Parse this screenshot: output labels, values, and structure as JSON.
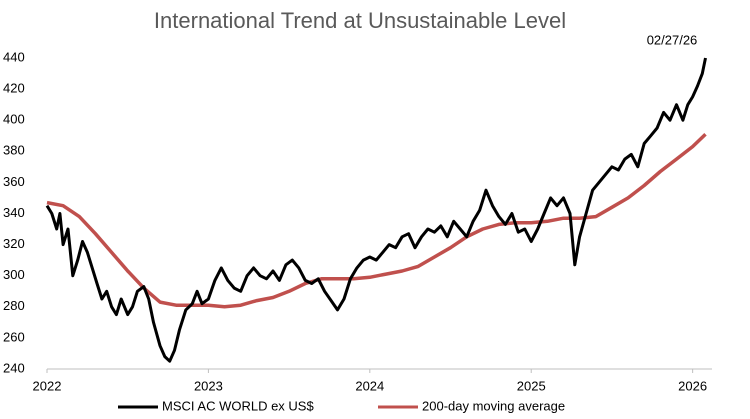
{
  "chart_data": {
    "type": "line",
    "title": "International Trend at Unsustainable Level",
    "annotation": "02/27/26",
    "xlim": [
      2022,
      2026.12
    ],
    "xticks": [
      2022,
      2023,
      2024,
      2025,
      2026
    ],
    "ylim": [
      240,
      440
    ],
    "yticks": [
      240,
      260,
      280,
      300,
      320,
      340,
      360,
      380,
      400,
      420,
      440
    ],
    "series": [
      {
        "name": "MSCI AC WORLD ex US$",
        "color": "#000000",
        "x": [
          2022.0,
          2022.03,
          2022.06,
          2022.08,
          2022.1,
          2022.13,
          2022.16,
          2022.19,
          2022.22,
          2022.25,
          2022.28,
          2022.31,
          2022.34,
          2022.37,
          2022.4,
          2022.43,
          2022.46,
          2022.5,
          2022.53,
          2022.56,
          2022.6,
          2022.63,
          2022.66,
          2022.7,
          2022.73,
          2022.76,
          2022.79,
          2022.82,
          2022.86,
          2022.9,
          2022.93,
          2022.96,
          2023.0,
          2023.04,
          2023.08,
          2023.12,
          2023.16,
          2023.2,
          2023.24,
          2023.28,
          2023.32,
          2023.36,
          2023.4,
          2023.44,
          2023.48,
          2023.52,
          2023.56,
          2023.6,
          2023.64,
          2023.68,
          2023.72,
          2023.76,
          2023.8,
          2023.84,
          2023.88,
          2023.92,
          2023.96,
          2024.0,
          2024.04,
          2024.08,
          2024.12,
          2024.16,
          2024.2,
          2024.24,
          2024.28,
          2024.32,
          2024.36,
          2024.4,
          2024.44,
          2024.48,
          2024.52,
          2024.56,
          2024.6,
          2024.64,
          2024.68,
          2024.72,
          2024.76,
          2024.8,
          2024.84,
          2024.88,
          2024.92,
          2024.96,
          2025.0,
          2025.04,
          2025.08,
          2025.12,
          2025.16,
          2025.2,
          2025.24,
          2025.27,
          2025.3,
          2025.34,
          2025.38,
          2025.42,
          2025.46,
          2025.5,
          2025.54,
          2025.58,
          2025.62,
          2025.66,
          2025.7,
          2025.74,
          2025.78,
          2025.82,
          2025.86,
          2025.9,
          2025.94,
          2025.97,
          2026.0,
          2026.03,
          2026.06,
          2026.08
        ],
        "values": [
          345,
          340,
          330,
          340,
          320,
          330,
          300,
          310,
          322,
          315,
          305,
          295,
          285,
          290,
          280,
          275,
          285,
          275,
          280,
          290,
          293,
          285,
          270,
          255,
          248,
          245,
          252,
          265,
          278,
          282,
          290,
          282,
          285,
          297,
          305,
          297,
          292,
          290,
          300,
          305,
          300,
          298,
          303,
          297,
          307,
          310,
          305,
          297,
          295,
          298,
          290,
          284,
          278,
          285,
          298,
          305,
          310,
          312,
          310,
          315,
          320,
          318,
          325,
          327,
          318,
          325,
          330,
          328,
          332,
          325,
          335,
          330,
          325,
          335,
          342,
          355,
          345,
          338,
          333,
          340,
          328,
          330,
          322,
          330,
          340,
          350,
          345,
          350,
          340,
          307,
          325,
          340,
          355,
          360,
          365,
          370,
          368,
          375,
          378,
          370,
          385,
          390,
          395,
          405,
          400,
          410,
          400,
          410,
          415,
          422,
          430,
          440
        ]
      },
      {
        "name": "200-day moving average",
        "color": "#c0504d",
        "x": [
          2022.0,
          2022.1,
          2022.2,
          2022.3,
          2022.4,
          2022.5,
          2022.6,
          2022.7,
          2022.8,
          2022.9,
          2023.0,
          2023.1,
          2023.2,
          2023.3,
          2023.4,
          2023.5,
          2023.6,
          2023.7,
          2023.8,
          2023.9,
          2024.0,
          2024.1,
          2024.2,
          2024.3,
          2024.4,
          2024.5,
          2024.6,
          2024.7,
          2024.8,
          2024.9,
          2025.0,
          2025.1,
          2025.2,
          2025.3,
          2025.4,
          2025.5,
          2025.6,
          2025.7,
          2025.8,
          2025.9,
          2026.0,
          2026.08
        ],
        "values": [
          347,
          345,
          338,
          327,
          315,
          303,
          292,
          283,
          281,
          281,
          281,
          280,
          281,
          284,
          286,
          290,
          295,
          298,
          298,
          298,
          299,
          301,
          303,
          306,
          312,
          318,
          325,
          330,
          333,
          334,
          334,
          335,
          337,
          337,
          338,
          344,
          350,
          358,
          367,
          375,
          383,
          391
        ]
      }
    ]
  }
}
